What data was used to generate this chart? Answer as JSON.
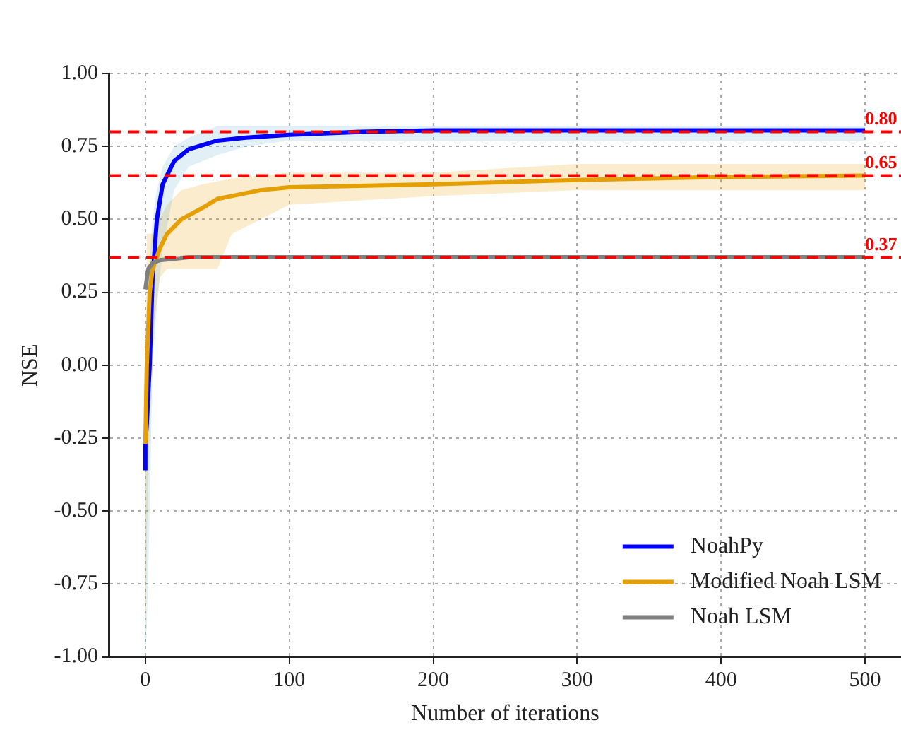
{
  "chart_data": {
    "type": "line",
    "xlabel": "Number of iterations",
    "ylabel": "NSE",
    "xlim": [
      -25,
      525
    ],
    "xticks": [
      0,
      100,
      200,
      300,
      400,
      500
    ],
    "ylim": [
      -1,
      1
    ],
    "yticks": [
      {
        "value": -1,
        "label": "-1.00"
      },
      {
        "value": -0.75,
        "label": "-0.75"
      },
      {
        "value": -0.5,
        "label": "-0.50"
      },
      {
        "value": -0.25,
        "label": "-0.25"
      },
      {
        "value": 0,
        "label": "0.00"
      },
      {
        "value": 0.25,
        "label": "0.25"
      },
      {
        "value": 0.5,
        "label": "0.50"
      },
      {
        "value": 0.75,
        "label": "0.75"
      },
      {
        "value": 1,
        "label": "1.00"
      }
    ],
    "grid": true,
    "legend": "bottom right",
    "line_style": "solid",
    "marker": "none",
    "series": [
      {
        "name": "NoahPy",
        "color": "#0000ff",
        "x": [
          0,
          0,
          1,
          3,
          5,
          8,
          12,
          20,
          30,
          50,
          70,
          100,
          150,
          200,
          500
        ],
        "values": [
          -0.36,
          -0.27,
          -0.2,
          0.0,
          0.3,
          0.5,
          0.62,
          0.7,
          0.74,
          0.77,
          0.78,
          0.79,
          0.8,
          0.805,
          0.805
        ],
        "lower": [
          -1,
          -1,
          -0.9,
          -0.5,
          0.0,
          0.2,
          0.4,
          0.6,
          0.68,
          0.72,
          0.75,
          0.77,
          0.77,
          0.77,
          0.77
        ],
        "upper": [
          -0.2,
          -0.2,
          0.1,
          0.35,
          0.5,
          0.6,
          0.68,
          0.75,
          0.78,
          0.82,
          0.82,
          0.82,
          0.82,
          0.82,
          0.82
        ]
      },
      {
        "name": "Modified Noah LSM",
        "color": "#e69f00",
        "x": [
          0,
          1,
          3,
          5,
          10,
          15,
          25,
          40,
          50,
          60,
          80,
          100,
          200,
          300,
          400,
          500
        ],
        "values": [
          -0.27,
          0.0,
          0.25,
          0.33,
          0.4,
          0.45,
          0.5,
          0.54,
          0.57,
          0.58,
          0.6,
          0.61,
          0.62,
          0.635,
          0.645,
          0.65
        ],
        "lower": [
          -1,
          -0.6,
          -0.2,
          0.1,
          0.3,
          0.33,
          0.33,
          0.33,
          0.33,
          0.45,
          0.5,
          0.55,
          0.58,
          0.6,
          0.6,
          0.6
        ],
        "upper": [
          0.0,
          0.45,
          0.45,
          0.45,
          0.5,
          0.55,
          0.6,
          0.62,
          0.63,
          0.64,
          0.65,
          0.66,
          0.66,
          0.69,
          0.69,
          0.69
        ]
      },
      {
        "name": "Noah LSM",
        "color": "#808080",
        "x": [
          0,
          2,
          5,
          10,
          30,
          500
        ],
        "values": [
          0.26,
          0.33,
          0.35,
          0.36,
          0.37,
          0.37
        ]
      }
    ],
    "ref_lines": [
      {
        "axis": "y",
        "value": 0.8,
        "label": "0.80",
        "color": "#ff0000",
        "line_style": "dashed"
      },
      {
        "axis": "y",
        "value": 0.65,
        "label": "0.65",
        "color": "#ff0000",
        "line_style": "dashed"
      },
      {
        "axis": "y",
        "value": 0.37,
        "label": "0.37",
        "color": "#ff0000",
        "line_style": "dashed"
      }
    ]
  }
}
